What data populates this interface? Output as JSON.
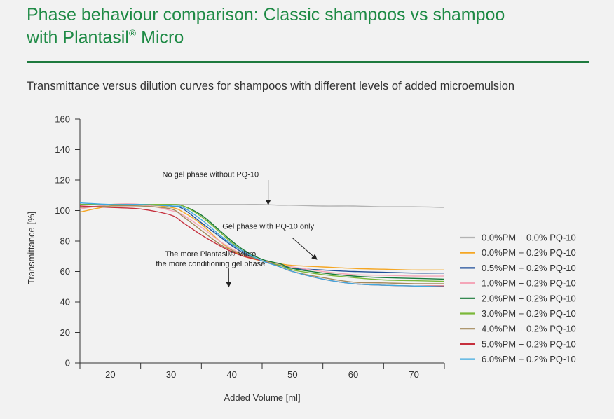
{
  "header": {
    "title_line1": "Phase behaviour comparison: Classic shampoos vs shampoo",
    "title_line2_prefix": "with Plantasil",
    "title_sup": "®",
    "title_line2_suffix": " Micro",
    "subtitle": "Transmittance versus dilution curves for shampoos with different levels of added microemulsion"
  },
  "chart_data": {
    "type": "line",
    "xlabel": "Added Volume [ml]",
    "ylabel": "Transmittance [%]",
    "xlim": [
      15,
      75
    ],
    "ylim": [
      0,
      160
    ],
    "xticks": [
      20,
      30,
      40,
      50,
      60,
      70
    ],
    "yticks": [
      0,
      20,
      40,
      60,
      80,
      100,
      120,
      140,
      160
    ],
    "grid": false,
    "legend_position": "right",
    "x": [
      15,
      20,
      25,
      30,
      32,
      35,
      38,
      40,
      42,
      45,
      48,
      50,
      55,
      60,
      65,
      70,
      75
    ],
    "series": [
      {
        "name": "0.0%PM + 0.0% PQ-10",
        "color": "#b3b3b3",
        "values": [
          104,
          104,
          104,
          104,
          104,
          104,
          104,
          104,
          104,
          104,
          103.5,
          103.5,
          103,
          103,
          102.5,
          102.5,
          102
        ]
      },
      {
        "name": "0.0%PM + 0.2% PQ-10",
        "color": "#f5a623",
        "values": [
          99,
          103,
          104,
          102,
          99,
          91,
          80,
          74,
          70,
          67,
          65,
          64,
          63,
          62,
          61.5,
          61,
          61
        ]
      },
      {
        "name": "0.5%PM + 0.2% PQ-10",
        "color": "#1f4e99",
        "values": [
          104,
          104,
          104,
          103,
          101,
          92,
          83,
          77,
          72,
          67,
          64,
          62,
          61,
          60,
          59.5,
          59,
          59
        ]
      },
      {
        "name": "1.0%PM + 0.2% PQ-10",
        "color": "#f4a6b8",
        "values": [
          101,
          104,
          104,
          100,
          97,
          89,
          80,
          75,
          71,
          67,
          64.5,
          63,
          60,
          58,
          57.5,
          57,
          57
        ]
      },
      {
        "name": "2.0%PM + 0.2% PQ-10",
        "color": "#1a7a3a",
        "values": [
          104,
          104,
          104,
          104,
          103,
          97,
          87,
          80,
          74,
          68,
          65,
          62,
          59,
          57,
          56,
          55.5,
          55
        ]
      },
      {
        "name": "3.0%PM + 0.2% PQ-10",
        "color": "#7bb83a",
        "values": [
          104,
          104,
          104,
          104,
          103,
          96,
          86,
          79,
          73,
          67,
          64,
          61,
          58,
          56,
          54.5,
          54,
          53.5
        ]
      },
      {
        "name": "4.0%PM + 0.2% PQ-10",
        "color": "#a58a5c",
        "values": [
          102,
          103,
          103,
          101,
          96,
          87,
          78,
          74,
          71,
          67,
          63,
          60,
          56,
          53,
          52.5,
          52,
          52
        ]
      },
      {
        "name": "5.0%PM + 0.2% PQ-10",
        "color": "#c62f3d",
        "values": [
          103,
          102,
          101,
          97,
          92,
          84,
          77,
          73,
          70,
          67,
          63,
          60,
          55,
          52,
          51,
          50.5,
          50.5
        ]
      },
      {
        "name": "6.0%PM + 0.2% PQ-10",
        "color": "#3fa9e0",
        "values": [
          105,
          104,
          104,
          103,
          102,
          94,
          84,
          78,
          73,
          67,
          63,
          60,
          55,
          52,
          51,
          50.5,
          50
        ]
      }
    ],
    "annotations": [
      {
        "id": "no-gel",
        "lines": [
          "No gel phase without PQ-10"
        ],
        "x": 36.5,
        "y": 122,
        "arrow_from": [
          46,
          120
        ],
        "arrow_to": [
          46,
          104
        ]
      },
      {
        "id": "gel-pq10",
        "lines": [
          "Gel phase with PQ-10 only"
        ],
        "x": 46,
        "y": 88,
        "arrow_from": [
          50,
          82
        ],
        "arrow_to": [
          54,
          68
        ]
      },
      {
        "id": "more-plantasil",
        "lines": [
          "The more Plantasil® Micro",
          "the more conditioning gel phase"
        ],
        "x": 36.5,
        "y": 70,
        "arrow_from": [
          39.5,
          62
        ],
        "arrow_to": [
          39.5,
          50
        ]
      }
    ]
  }
}
